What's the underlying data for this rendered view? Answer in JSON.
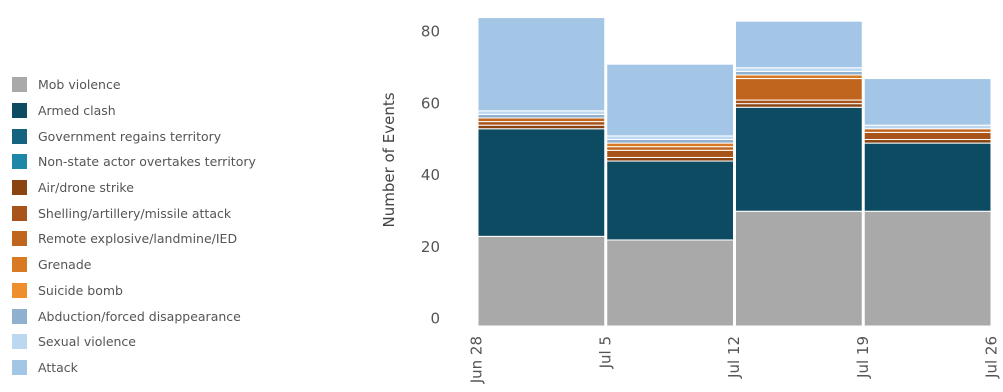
{
  "chart_data": {
    "type": "bar",
    "stacked": true,
    "ylabel": "Number of Events",
    "xlabel": "",
    "ylim": [
      0,
      87
    ],
    "yticks": [
      0,
      20,
      40,
      60,
      80
    ],
    "x_ticks": [
      "Jun 28",
      "Jul 5",
      "Jul 12",
      "Jul 19",
      "Jul 26"
    ],
    "bins": [
      {
        "start": "Jun 28",
        "end": "Jul 5"
      },
      {
        "start": "Jul 5",
        "end": "Jul 12"
      },
      {
        "start": "Jul 12",
        "end": "Jul 19"
      },
      {
        "start": "Jul 19",
        "end": "Jul 26"
      }
    ],
    "legend_position": "left",
    "series": [
      {
        "name": "Mob violence",
        "color": "#a9a9a9",
        "values": [
          25,
          24,
          32,
          32
        ]
      },
      {
        "name": "Armed clash",
        "color": "#0d4b63",
        "values": [
          30,
          22,
          29,
          19
        ]
      },
      {
        "name": "Government regains territory",
        "color": "#15637f",
        "values": [
          0,
          0,
          0,
          0
        ]
      },
      {
        "name": "Non-state actor overtakes territory",
        "color": "#1e86a6",
        "values": [
          0,
          0,
          0,
          0
        ]
      },
      {
        "name": "Air/drone strike",
        "color": "#8a4412",
        "values": [
          1,
          1,
          1,
          1
        ]
      },
      {
        "name": "Shelling/artillery/missile attack",
        "color": "#a8531a",
        "values": [
          1,
          2,
          1,
          2
        ]
      },
      {
        "name": "Remote explosive/landmine/IED",
        "color": "#c0651e",
        "values": [
          1,
          1,
          6,
          1
        ]
      },
      {
        "name": "Grenade",
        "color": "#d87a24",
        "values": [
          0,
          1,
          1,
          0
        ]
      },
      {
        "name": "Suicide bomb",
        "color": "#ee8e2d",
        "values": [
          0,
          0,
          0,
          0
        ]
      },
      {
        "name": "Abduction/forced disappearance",
        "color": "#8fb0cf",
        "values": [
          1,
          1,
          1,
          0
        ]
      },
      {
        "name": "Sexual violence",
        "color": "#bcd8f0",
        "values": [
          1,
          1,
          1,
          1
        ]
      },
      {
        "name": "Attack",
        "color": "#a3c6e6",
        "values": [
          26,
          20,
          13,
          13
        ]
      }
    ]
  }
}
